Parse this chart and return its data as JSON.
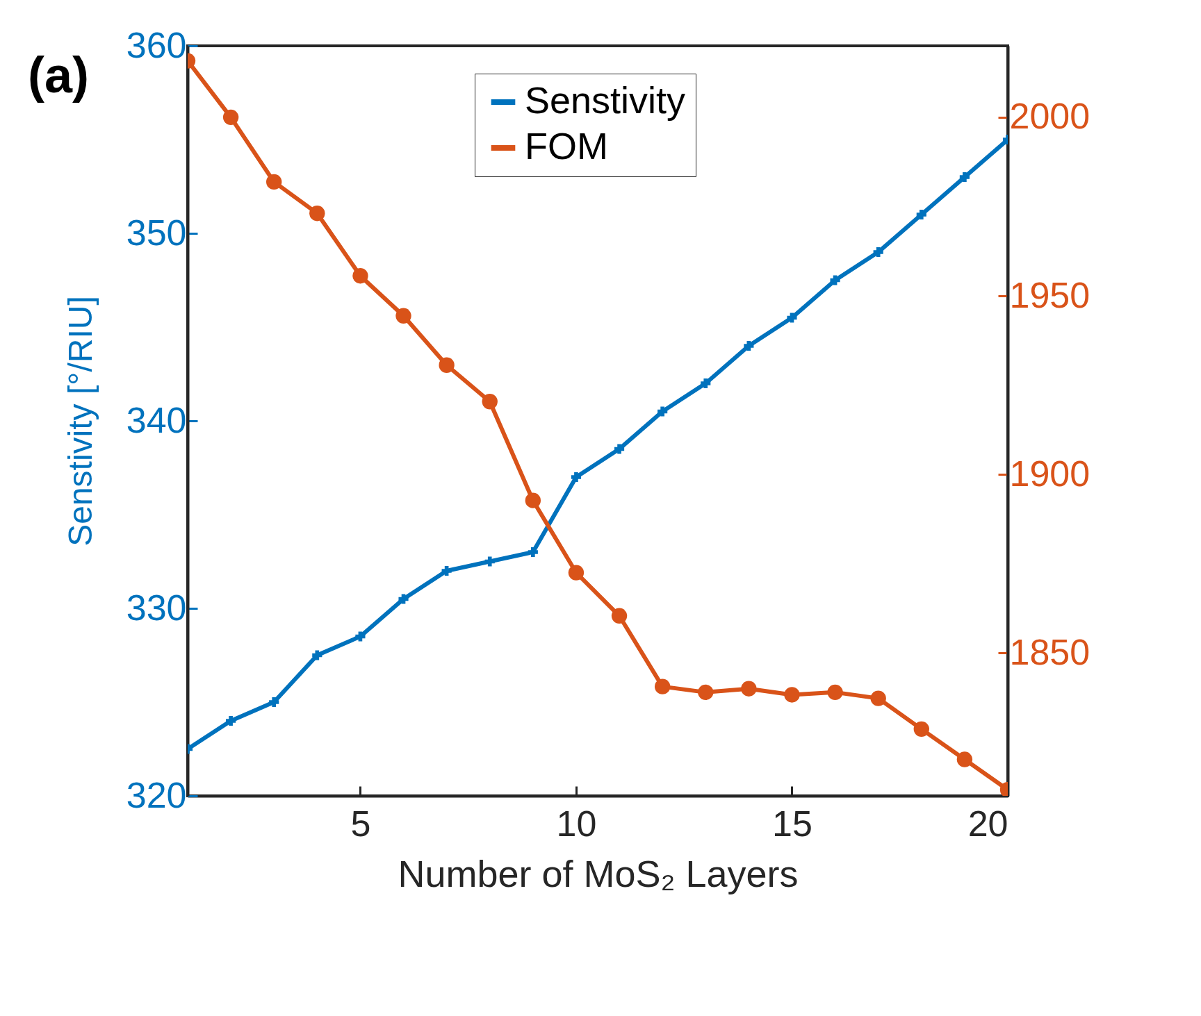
{
  "chart_data": {
    "type": "line",
    "xlabel": "Number of MoS₂ Layers",
    "ylabel": "Senstivity [°/RIU]",
    "annotations": [
      "(a)"
    ],
    "x": [
      1,
      2,
      3,
      4,
      5,
      6,
      7,
      8,
      9,
      10,
      11,
      12,
      13,
      14,
      15,
      16,
      17,
      18,
      19,
      20
    ],
    "series": [
      {
        "name": "Senstivity",
        "color": "#0072bd",
        "marker": "cross",
        "values": [
          322.5,
          324.0,
          325.0,
          327.5,
          328.5,
          330.5,
          332.0,
          332.5,
          333.0,
          337.0,
          338.5,
          340.5,
          342.0,
          344.0,
          345.5,
          347.5,
          349.0,
          351.0,
          353.0,
          355.0
        ]
      },
      {
        "name": "FOM",
        "color": "#d95319",
        "marker": "circle",
        "axis": "y2",
        "values": [
          2015.8,
          2000.0,
          1981.9,
          1973.1,
          1955.6,
          1944.4,
          1930.6,
          1920.4,
          1892.7,
          1872.5,
          1860.4,
          1840.6,
          1839.0,
          1840.0,
          1838.3,
          1839.0,
          1837.3,
          1828.7,
          1820.2,
          1811.7
        ]
      }
    ],
    "xlim": [
      1,
      20
    ],
    "xticks": [
      5,
      10,
      15,
      20
    ],
    "ylim": [
      320,
      360
    ],
    "yticks": [
      320,
      330,
      340,
      350,
      360
    ],
    "y2lim": [
      1810,
      2020
    ],
    "y2ticks": [
      1850,
      1900,
      1950,
      2000
    ],
    "legend": "top",
    "grid": false,
    "line_style": "solid"
  }
}
